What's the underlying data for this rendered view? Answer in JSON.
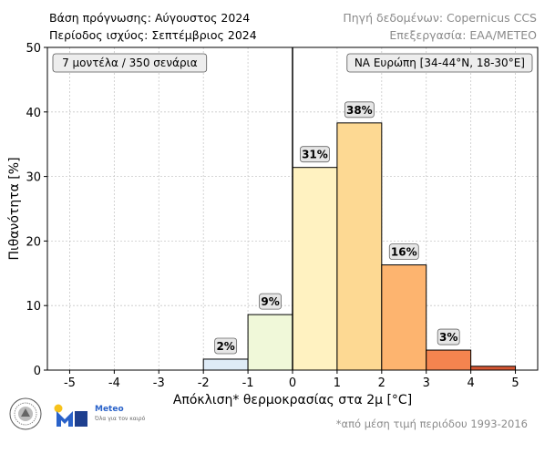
{
  "header": {
    "forecast_base": "Βάση πρόγνωσης: Αύγουστος 2024",
    "forecast_period": "Περίοδος ισχύος: Σεπτέμβριος 2024",
    "data_source": "Πηγή δεδομένων: Copernicus CCS",
    "processing": "Επεξεργασία: EAA/METEO"
  },
  "footnote": "*από μέση τιμή περιόδου 1993-2016",
  "logos": {
    "meteo_name": "Meteo",
    "meteo_tagline": "Όλα για τον καιρό"
  },
  "chart_data": {
    "type": "bar",
    "subtype": "histogram",
    "bins": [
      {
        "from": -2,
        "to": -1,
        "value": 1.7,
        "label": "2%",
        "color": "#deebf7"
      },
      {
        "from": -1,
        "to": 0,
        "value": 8.6,
        "label": "9%",
        "color": "#f0f8d9"
      },
      {
        "from": 0,
        "to": 1,
        "value": 31.4,
        "label": "31%",
        "color": "#fff2c1"
      },
      {
        "from": 1,
        "to": 2,
        "value": 38.3,
        "label": "38%",
        "color": "#fdd993"
      },
      {
        "from": 2,
        "to": 3,
        "value": 16.3,
        "label": "16%",
        "color": "#fdb46f"
      },
      {
        "from": 3,
        "to": 4,
        "value": 3.1,
        "label": "3%",
        "color": "#f4844f"
      },
      {
        "from": 4,
        "to": 5,
        "value": 0.6,
        "label": "",
        "color": "#d55733"
      }
    ],
    "xlabel": "Απόκλιση* θερμοκρασίας στα 2μ [°C]",
    "ylabel": "Πιθανότητα [%]",
    "xlim": [
      -5.5,
      5.5
    ],
    "ylim": [
      0,
      50
    ],
    "xticks": [
      -5,
      -4,
      -3,
      -2,
      -1,
      0,
      1,
      2,
      3,
      4,
      5
    ],
    "yticks": [
      0,
      10,
      20,
      30,
      40,
      50
    ],
    "grid": true,
    "zero_line": 0,
    "box_left": "7 μοντέλα / 350 σενάρια",
    "box_right": "ΝΑ Ευρώπη [34-44°N, 18-30°E]"
  }
}
